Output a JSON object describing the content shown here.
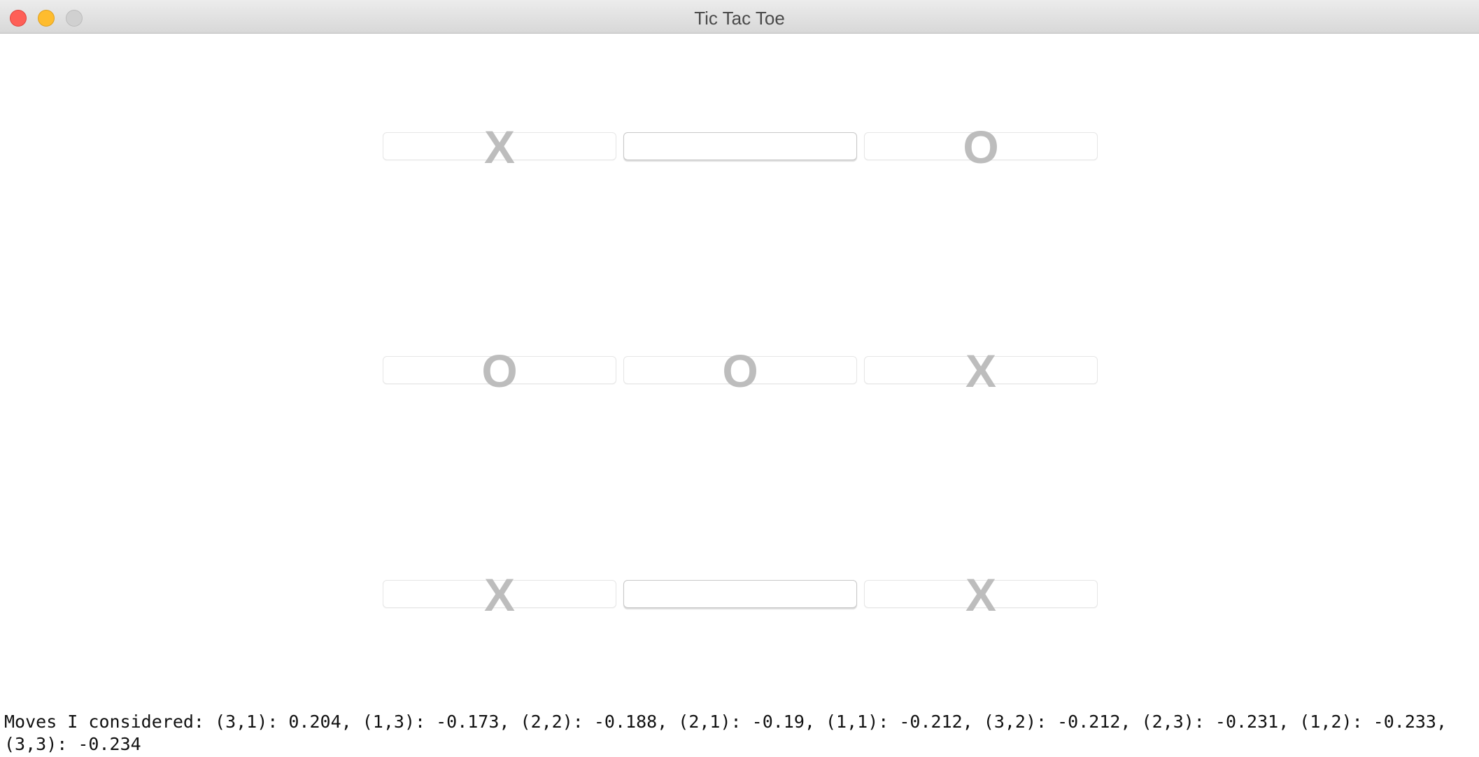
{
  "window": {
    "title": "Tic Tac Toe"
  },
  "board": {
    "rows": [
      [
        {
          "mark": "X"
        },
        {
          "mark": ""
        },
        {
          "mark": "O"
        }
      ],
      [
        {
          "mark": "O"
        },
        {
          "mark": "O"
        },
        {
          "mark": "X"
        }
      ],
      [
        {
          "mark": "X"
        },
        {
          "mark": ""
        },
        {
          "mark": "X"
        }
      ]
    ]
  },
  "console": {
    "text": "Moves I considered: (3,1): 0.204, (1,3): -0.173, (2,2): -0.188, (2,1): -0.19, (1,1): -0.212, (3,2): -0.212, (2,3): -0.231, (1,2): -0.233, (3,3): -0.234"
  },
  "colors": {
    "close": "#fe5f57",
    "minimize": "#febc2e",
    "zoom_disabled": "#d0d0d0",
    "mark": "#bdbdbd"
  }
}
